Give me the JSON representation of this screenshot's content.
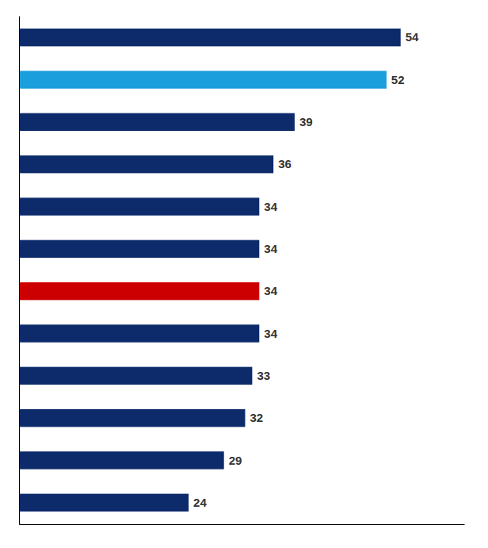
{
  "chart_data": {
    "type": "bar",
    "orientation": "horizontal",
    "categories": [
      null,
      null,
      null,
      null,
      null,
      null,
      null,
      null,
      null,
      null,
      null,
      null
    ],
    "values": [
      54,
      52,
      39,
      36,
      34,
      34,
      34,
      34,
      33,
      32,
      29,
      24
    ],
    "colors": [
      "#0d2b6b",
      "#1a9edc",
      "#0d2b6b",
      "#0d2b6b",
      "#0d2b6b",
      "#0d2b6b",
      "#cc0000",
      "#0d2b6b",
      "#0d2b6b",
      "#0d2b6b",
      "#0d2b6b",
      "#0d2b6b"
    ],
    "xlim": [
      0,
      63
    ],
    "data_labels": true,
    "tick_labels": false
  }
}
